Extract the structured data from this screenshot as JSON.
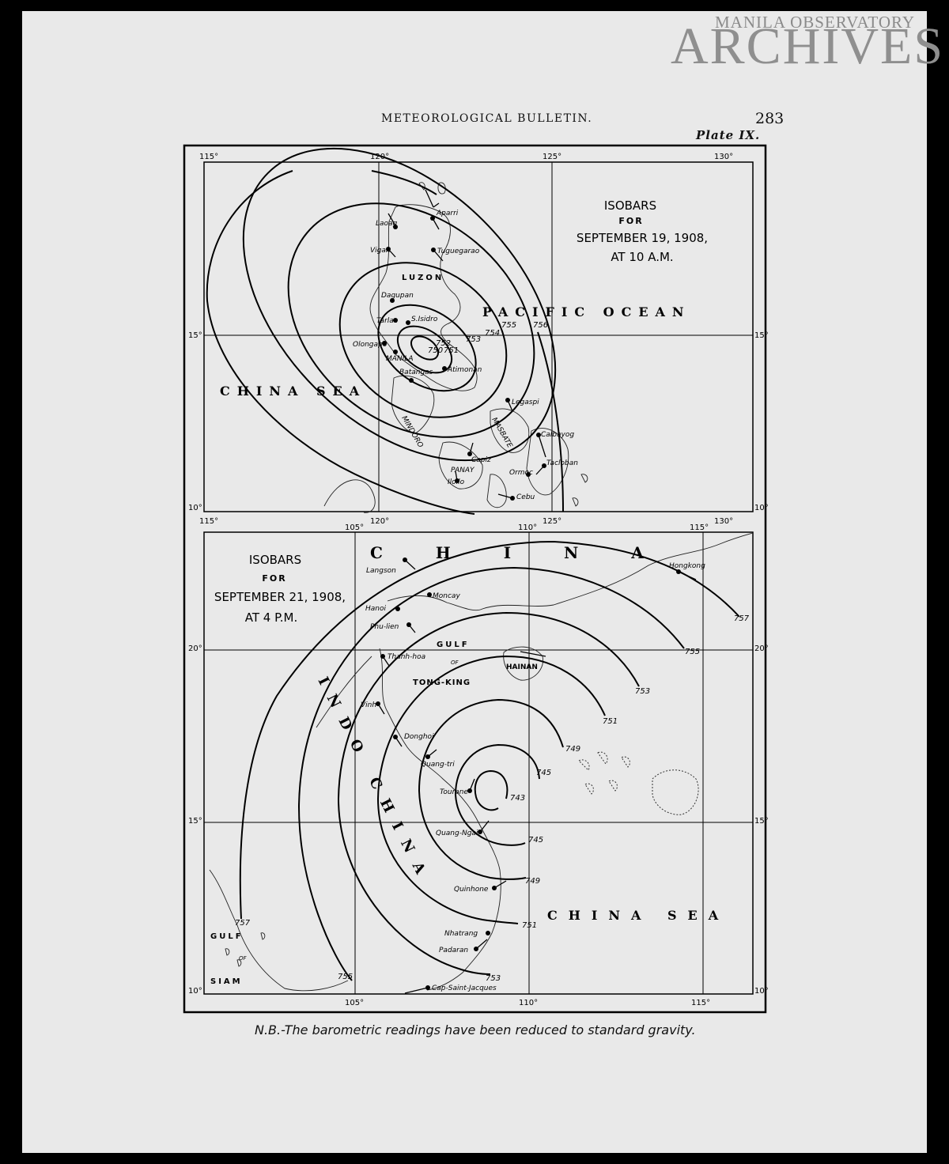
{
  "watermark": {
    "line1": "MANILA OBSERVATORY",
    "line2": "ARCHIVES"
  },
  "header": {
    "title": "METEOROLOGICAL BULLETIN.",
    "page_number": "283",
    "plate": "Plate IX."
  },
  "footnote": "N.B.-The barometric readings have been reduced to standard gravity.",
  "map_top": {
    "title": [
      "ISOBARS",
      "FOR",
      "SEPTEMBER 19, 1908,",
      "AT 10 A.M."
    ],
    "lon_ticks": [
      "115°",
      "120°",
      "125°",
      "130°"
    ],
    "lat_ticks": [
      "15°",
      "10°"
    ],
    "regions": {
      "pacific": "PACIFIC OCEAN",
      "china_sea": "CHINA SEA",
      "luzon": "LUZON",
      "mindoro": "MINDORO",
      "panay": "PANAY",
      "masbate": "MASBATE"
    },
    "stations": [
      "Laoag",
      "Aparri",
      "Vigan",
      "Tuguegarao",
      "Dagupan",
      "Tarlac",
      "S.Isidro",
      "Olongapo",
      "MANILA",
      "Batangas",
      "Atimonan",
      "Legaspi",
      "Calbayog",
      "Tacloban",
      "Capiz",
      "Iloilo",
      "Ormoc",
      "Cebu"
    ],
    "isobars": [
      "750",
      "751",
      "752",
      "753",
      "754",
      "755",
      "756"
    ]
  },
  "map_bottom": {
    "title": [
      "ISOBARS",
      "FOR",
      "SEPTEMBER 21, 1908,",
      "AT 4 P.M."
    ],
    "lon_ticks": [
      "105°",
      "110°",
      "115°"
    ],
    "lat_ticks": [
      "20°",
      "15°",
      "10°"
    ],
    "regions": {
      "china": "C H I N A",
      "indo_china": "INDO CHINA",
      "china_sea": "CHINA SEA",
      "gulf_tongking": [
        "GULF",
        "OF",
        "TONG-KING"
      ],
      "gulf_siam": [
        "GULF",
        "OF",
        "SIAM"
      ],
      "hainan": "HAINAN"
    },
    "stations": [
      "Langson",
      "Moncay",
      "Hanoi",
      "Phu-lien",
      "Hongkong",
      "Thanh-hoa",
      "Vinh",
      "Donghoi",
      "Quang-tri",
      "Tourane",
      "Quang-Ngai",
      "Quinhone",
      "Nhatrang",
      "Padaran",
      "Cap-Saint-Jacques"
    ],
    "isobars": [
      "743",
      "745",
      "745",
      "749",
      "749",
      "751",
      "751",
      "753",
      "753",
      "755",
      "755",
      "757",
      "757"
    ]
  }
}
